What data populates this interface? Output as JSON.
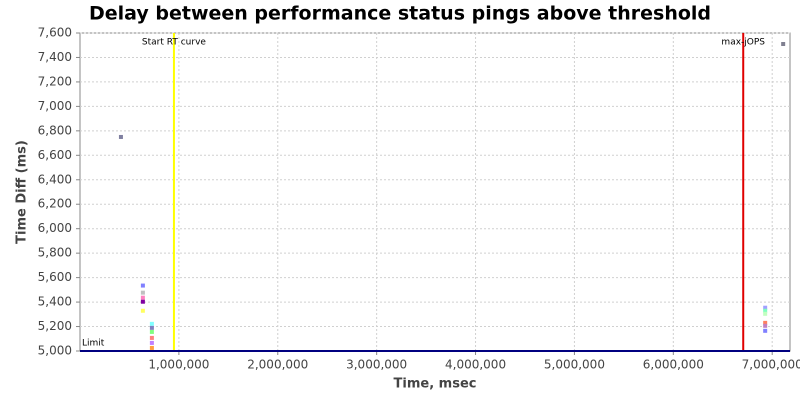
{
  "chart_data": {
    "type": "scatter",
    "title": "Delay between performance status pings above threshold",
    "x_label": "Time, msec",
    "y_label": "Time Diff (ms)",
    "xlim": [
      0,
      7180000
    ],
    "ylim": [
      5000,
      7600
    ],
    "xticks": [
      {
        "value": 1000000,
        "label": "1,000,000"
      },
      {
        "value": 2000000,
        "label": "2,000,000"
      },
      {
        "value": 3000000,
        "label": "3,000,000"
      },
      {
        "value": 4000000,
        "label": "4,000,000"
      },
      {
        "value": 5000000,
        "label": "5,000,000"
      },
      {
        "value": 6000000,
        "label": "6,000,000"
      },
      {
        "value": 7000000,
        "label": "7,000,000"
      }
    ],
    "yticks": [
      {
        "value": 5000,
        "label": "5,000"
      },
      {
        "value": 5200,
        "label": "5,200"
      },
      {
        "value": 5400,
        "label": "5,400"
      },
      {
        "value": 5600,
        "label": "5,600"
      },
      {
        "value": 5800,
        "label": "5,800"
      },
      {
        "value": 6000,
        "label": "6,000"
      },
      {
        "value": 6200,
        "label": "6,200"
      },
      {
        "value": 6400,
        "label": "6,400"
      },
      {
        "value": 6600,
        "label": "6,600"
      },
      {
        "value": 6800,
        "label": "6,800"
      },
      {
        "value": 7000,
        "label": "7,000"
      },
      {
        "value": 7200,
        "label": "7,200"
      },
      {
        "value": 7400,
        "label": "7,400"
      },
      {
        "value": 7600,
        "label": "7,600"
      }
    ],
    "grid": true,
    "points": {
      "x": [
        414000,
        636000,
        636000,
        636000,
        636000,
        636000,
        727000,
        727000,
        727000,
        727000,
        727000,
        727000,
        6929000,
        6929000,
        6929000,
        6929000,
        6929000,
        6929000,
        7111000
      ],
      "y": [
        6750,
        5535,
        5477,
        5436,
        5403,
        5329,
        5222,
        5189,
        5156,
        5107,
        5066,
        5025,
        5354,
        5329,
        5304,
        5230,
        5206,
        5165,
        7510
      ],
      "colors": [
        "#8080a0",
        "#8080ff",
        "#c0c0c0",
        "#ff80c0",
        "#8000a0",
        "#ffff60",
        "#80ffff",
        "#8080c0",
        "#80ff80",
        "#ff8080",
        "#c080ff",
        "#ffa040",
        "#a0a0ff",
        "#80ffc0",
        "#c0ffc0",
        "#ff8060",
        "#c080c0",
        "#8080ff",
        "#808090"
      ]
    },
    "x_markers": [
      {
        "value": 950000,
        "label": "Start RT curve",
        "color": "#ffff00"
      },
      {
        "value": 6707000,
        "label": "max-jOPS",
        "color": "#e00000"
      }
    ],
    "y_markers": [
      {
        "value": 5000,
        "label": "Limit",
        "color": "#000080"
      }
    ]
  }
}
